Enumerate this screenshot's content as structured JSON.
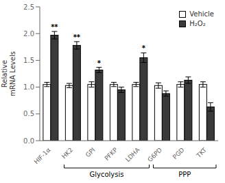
{
  "chart_data": {
    "type": "bar",
    "categories": [
      "HIF-1α",
      "HK2",
      "GPI",
      "PFKP",
      "LDHA",
      "G6PD",
      "PGD",
      "TKT"
    ],
    "series": [
      {
        "name": "Vehicle",
        "color": "#ffffff",
        "values": [
          1.05,
          1.03,
          1.05,
          1.05,
          1.05,
          1.03,
          1.05,
          1.05
        ],
        "errors": [
          0.04,
          0.04,
          0.05,
          0.04,
          0.04,
          0.05,
          0.05,
          0.05
        ]
      },
      {
        "name": "H₂O₂",
        "color": "#3a3a3a",
        "values": [
          1.97,
          1.78,
          1.32,
          0.95,
          1.55,
          0.88,
          1.13,
          0.63
        ],
        "errors": [
          0.07,
          0.07,
          0.05,
          0.05,
          0.09,
          0.05,
          0.06,
          0.08
        ]
      }
    ],
    "annotations": [
      {
        "category": "HIF-1α",
        "series": "H₂O₂",
        "text": "**"
      },
      {
        "category": "HK2",
        "series": "H₂O₂",
        "text": "**"
      },
      {
        "category": "GPI",
        "series": "H₂O₂",
        "text": "*"
      },
      {
        "category": "LDHA",
        "series": "H₂O₂",
        "text": "*"
      }
    ],
    "groups": [
      {
        "label": "Glycolysis",
        "start": "HK2",
        "end": "LDHA"
      },
      {
        "label": "PPP",
        "start": "G6PD",
        "end": "TKT"
      }
    ],
    "ylabel": "Relative\nmRNA Levels",
    "ylim": [
      0,
      2.5
    ],
    "yticks": [
      {
        "value": 0,
        "label": "0.0"
      },
      0.5,
      {
        "value": 1,
        "label": "1.0"
      },
      1.5,
      {
        "value": 2,
        "label": "2.0"
      },
      2.5
    ],
    "legend": "upper right"
  }
}
